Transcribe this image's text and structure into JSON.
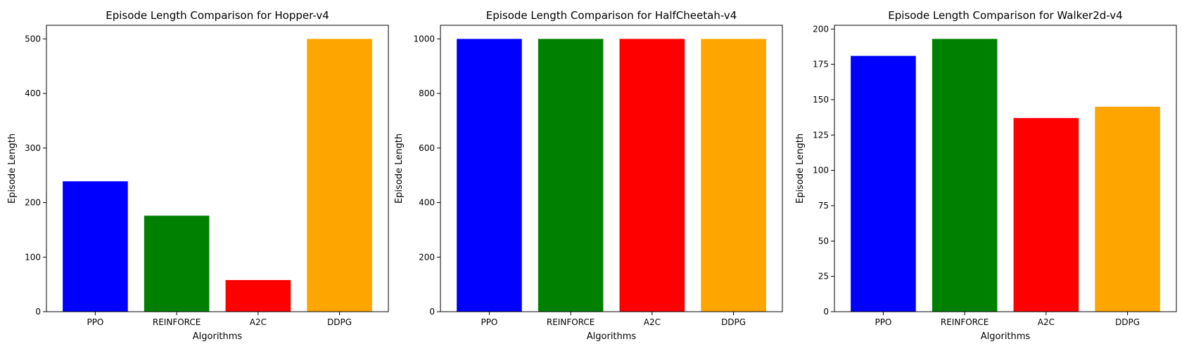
{
  "chart_data": [
    {
      "type": "bar",
      "title": "Episode Length Comparison for Hopper-v4",
      "xlabel": "Algorithms",
      "ylabel": "Episode Length",
      "categories": [
        "PPO",
        "REINFORCE",
        "A2C",
        "DDPG"
      ],
      "values": [
        239,
        176,
        58,
        500
      ],
      "colors": [
        "#0000ff",
        "#008000",
        "#ff0000",
        "#ffa500"
      ],
      "ylim": [
        0,
        525
      ],
      "yticks": [
        0,
        100,
        200,
        300,
        400,
        500
      ],
      "grid": false
    },
    {
      "type": "bar",
      "title": "Episode Length Comparison for HalfCheetah-v4",
      "xlabel": "Algorithms",
      "ylabel": "Episode Length",
      "categories": [
        "PPO",
        "REINFORCE",
        "A2C",
        "DDPG"
      ],
      "values": [
        1000,
        1000,
        1000,
        1000
      ],
      "colors": [
        "#0000ff",
        "#008000",
        "#ff0000",
        "#ffa500"
      ],
      "ylim": [
        0,
        1050
      ],
      "yticks": [
        0,
        200,
        400,
        600,
        800,
        1000
      ],
      "grid": false
    },
    {
      "type": "bar",
      "title": "Episode Length Comparison for Walker2d-v4",
      "xlabel": "Algorithms",
      "ylabel": "Episode Length",
      "categories": [
        "PPO",
        "REINFORCE",
        "A2C",
        "DDPG"
      ],
      "values": [
        181,
        193,
        137,
        145
      ],
      "colors": [
        "#0000ff",
        "#008000",
        "#ff0000",
        "#ffa500"
      ],
      "ylim": [
        0,
        202.65
      ],
      "yticks": [
        0,
        25,
        50,
        75,
        100,
        125,
        150,
        175,
        200
      ],
      "grid": false
    }
  ]
}
